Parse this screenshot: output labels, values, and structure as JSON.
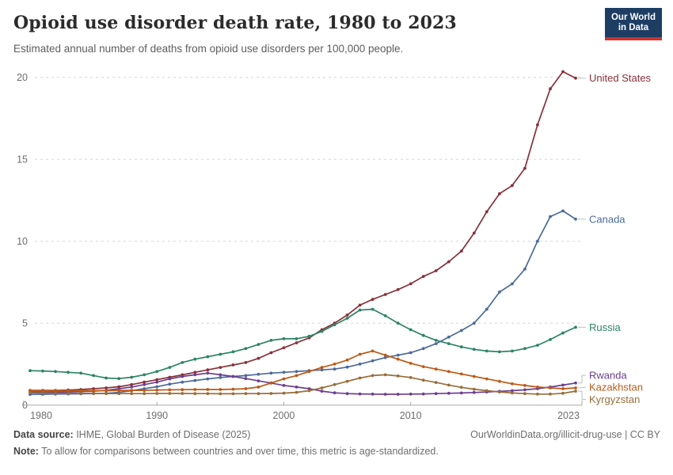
{
  "header": {
    "title": "Opioid use disorder death rate, 1980 to 2023",
    "subtitle": "Estimated annual number of deaths from opioid use disorders per 100,000 people.",
    "logo": {
      "line1": "Our World",
      "line2": "in Data",
      "bg_color": "#1d3d63",
      "stripe_color": "#d1322e"
    }
  },
  "footer": {
    "source_label": "Data source:",
    "source_text": " IHME, Global Burden of Disease (2025)",
    "link_text": "OurWorldinData.org/illicit-drug-use | CC BY",
    "note_label": "Note:",
    "note_text": " To allow for comparisons between countries and over time, this metric is age-standardized."
  },
  "chart_data": {
    "type": "line",
    "title": "Opioid use disorder death rate, 1980 to 2023",
    "subtitle": "Estimated annual number of deaths from opioid use disorders per 100,000 people.",
    "xlabel": "",
    "ylabel": "",
    "xlim": [
      1980,
      2023
    ],
    "ylim": [
      0,
      20.85
    ],
    "xticks": [
      1980,
      1990,
      2000,
      2010,
      2023
    ],
    "yticks": [
      0,
      5,
      10,
      15,
      20
    ],
    "grid": "horizontal-dashed",
    "legend_position": "right-edge-entity-labels",
    "x": [
      1980,
      1981,
      1982,
      1983,
      1984,
      1985,
      1986,
      1987,
      1988,
      1989,
      1990,
      1991,
      1992,
      1993,
      1994,
      1995,
      1996,
      1997,
      1998,
      1999,
      2000,
      2001,
      2002,
      2003,
      2004,
      2005,
      2006,
      2007,
      2008,
      2009,
      2010,
      2011,
      2012,
      2013,
      2014,
      2015,
      2016,
      2017,
      2018,
      2019,
      2020,
      2021,
      2022,
      2023
    ],
    "series": [
      {
        "name": "United States",
        "color": "#883039",
        "values": [
          0.9,
          0.9,
          0.9,
          0.92,
          0.95,
          1.0,
          1.05,
          1.12,
          1.25,
          1.4,
          1.55,
          1.7,
          1.85,
          2.0,
          2.15,
          2.3,
          2.45,
          2.6,
          2.85,
          3.2,
          3.5,
          3.8,
          4.1,
          4.6,
          5.0,
          5.5,
          6.1,
          6.45,
          6.75,
          7.05,
          7.4,
          7.85,
          8.2,
          8.75,
          9.4,
          10.5,
          11.8,
          12.9,
          13.4,
          14.45,
          17.1,
          19.3,
          20.35,
          19.95
        ]
      },
      {
        "name": "Canada",
        "color": "#4C6A9C",
        "values": [
          0.65,
          0.66,
          0.67,
          0.68,
          0.69,
          0.7,
          0.72,
          0.78,
          0.88,
          1.0,
          1.12,
          1.28,
          1.4,
          1.5,
          1.6,
          1.68,
          1.75,
          1.8,
          1.88,
          1.95,
          2.0,
          2.05,
          2.1,
          2.15,
          2.2,
          2.32,
          2.5,
          2.7,
          2.9,
          3.05,
          3.2,
          3.45,
          3.75,
          4.15,
          4.55,
          5.0,
          5.85,
          6.9,
          7.4,
          8.3,
          10.0,
          11.5,
          11.85,
          11.35
        ]
      },
      {
        "name": "Russia",
        "color": "#2C8465",
        "values": [
          2.1,
          2.08,
          2.05,
          2.0,
          1.95,
          1.8,
          1.65,
          1.62,
          1.7,
          1.85,
          2.05,
          2.3,
          2.6,
          2.8,
          2.95,
          3.1,
          3.25,
          3.45,
          3.7,
          3.95,
          4.05,
          4.05,
          4.2,
          4.5,
          4.9,
          5.3,
          5.8,
          5.85,
          5.45,
          5.0,
          4.6,
          4.25,
          3.95,
          3.75,
          3.55,
          3.4,
          3.3,
          3.25,
          3.3,
          3.45,
          3.65,
          4.0,
          4.4,
          4.75
        ]
      },
      {
        "name": "Rwanda",
        "color": "#6D3E91",
        "values": [
          0.8,
          0.8,
          0.8,
          0.8,
          0.82,
          0.85,
          0.9,
          1.0,
          1.1,
          1.25,
          1.4,
          1.6,
          1.75,
          1.85,
          1.95,
          1.85,
          1.75,
          1.62,
          1.48,
          1.35,
          1.2,
          1.1,
          1.0,
          0.85,
          0.75,
          0.7,
          0.68,
          0.67,
          0.66,
          0.66,
          0.67,
          0.68,
          0.7,
          0.72,
          0.74,
          0.77,
          0.8,
          0.84,
          0.88,
          0.93,
          1.0,
          1.1,
          1.22,
          1.35
        ]
      },
      {
        "name": "Kazakhstan",
        "color": "#BE5915",
        "values": [
          0.88,
          0.88,
          0.88,
          0.88,
          0.88,
          0.88,
          0.88,
          0.9,
          0.9,
          0.9,
          0.92,
          0.93,
          0.94,
          0.95,
          0.95,
          0.95,
          0.97,
          1.0,
          1.1,
          1.35,
          1.6,
          1.8,
          2.05,
          2.3,
          2.5,
          2.75,
          3.1,
          3.3,
          3.05,
          2.8,
          2.55,
          2.35,
          2.2,
          2.05,
          1.9,
          1.75,
          1.6,
          1.45,
          1.3,
          1.2,
          1.1,
          1.05,
          1.0,
          1.05
        ]
      },
      {
        "name": "Kyrgyzstan",
        "color": "#996D39",
        "values": [
          0.75,
          0.74,
          0.73,
          0.72,
          0.72,
          0.71,
          0.7,
          0.7,
          0.7,
          0.7,
          0.71,
          0.71,
          0.71,
          0.7,
          0.7,
          0.69,
          0.69,
          0.7,
          0.7,
          0.71,
          0.73,
          0.78,
          0.88,
          1.05,
          1.25,
          1.45,
          1.65,
          1.8,
          1.85,
          1.78,
          1.68,
          1.52,
          1.38,
          1.22,
          1.08,
          0.97,
          0.88,
          0.8,
          0.74,
          0.7,
          0.67,
          0.67,
          0.72,
          0.85
        ]
      }
    ]
  }
}
